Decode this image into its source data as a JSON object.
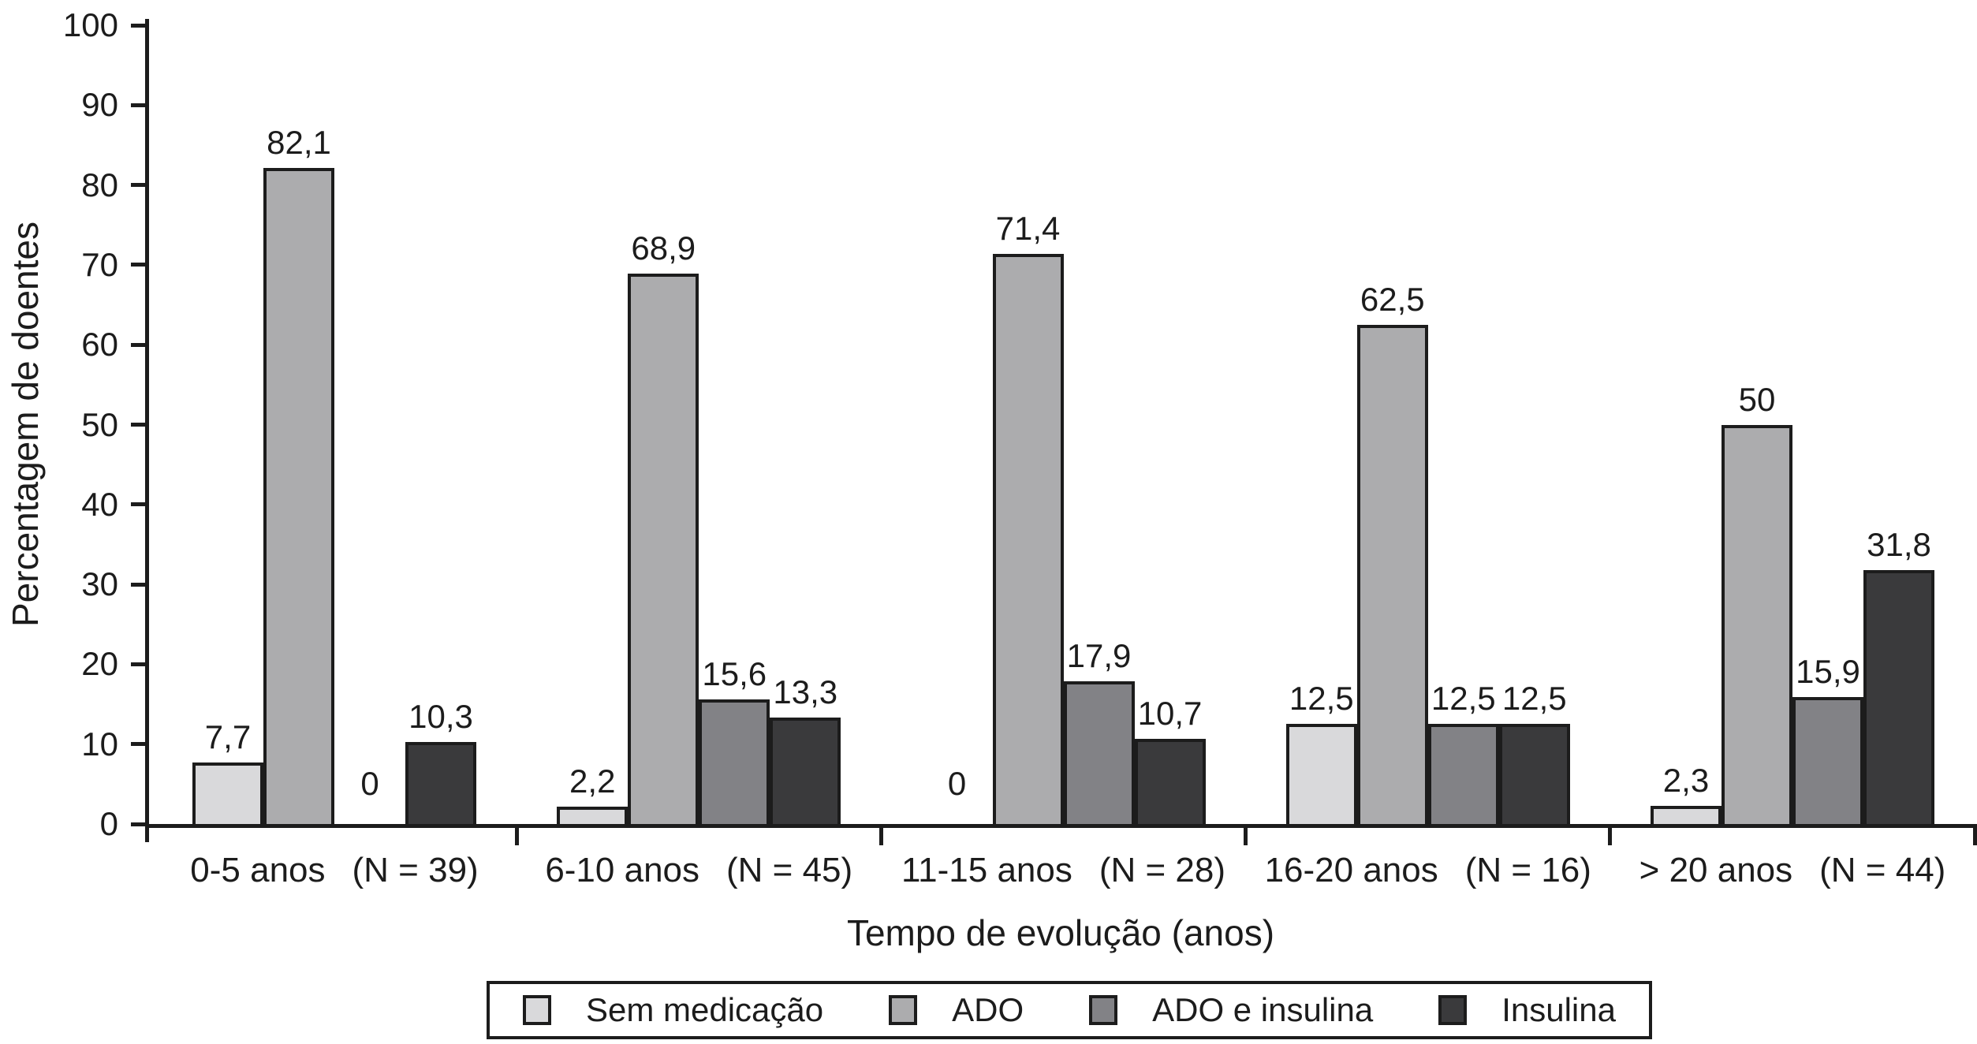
{
  "figure": {
    "background": "#ffffff",
    "axis_color": "#1c1c1c",
    "text_color": "#1c1c1c"
  },
  "chart_data": {
    "type": "bar",
    "title": "",
    "xlabel": "Tempo de evolução (anos)",
    "ylabel": "Percentagem de doentes",
    "ylim": [
      0,
      100
    ],
    "yticks": [
      0,
      10,
      20,
      30,
      40,
      50,
      60,
      70,
      80,
      90,
      100
    ],
    "grid": false,
    "legend_position": "bottom",
    "categories": [
      "0-5 anos",
      "6-10 anos",
      "11-15 anos",
      "16-20 anos",
      "> 20 anos"
    ],
    "category_counts": [
      "(N = 39)",
      "(N = 45)",
      "(N = 28)",
      "(N = 16)",
      "(N = 44)"
    ],
    "series": [
      {
        "name": "Sem medicação",
        "color": "#d9d9db",
        "values": [
          7.7,
          2.2,
          0,
          12.5,
          2.3
        ],
        "labels": [
          "7,7",
          "2,2",
          "0",
          "12,5",
          "2,3"
        ]
      },
      {
        "name": "ADO",
        "color": "#acacae",
        "values": [
          82.1,
          68.9,
          71.4,
          62.5,
          50
        ],
        "labels": [
          "82,1",
          "68,9",
          "71,4",
          "62,5",
          "50"
        ]
      },
      {
        "name": "ADO e insulina",
        "color": "#828286",
        "values": [
          0,
          15.6,
          17.9,
          12.5,
          15.9
        ],
        "labels": [
          "0",
          "15,6",
          "17,9",
          "12,5",
          "15,9"
        ]
      },
      {
        "name": "Insulina",
        "color": "#3a3a3c",
        "values": [
          10.3,
          13.3,
          10.7,
          12.5,
          31.8
        ],
        "labels": [
          "10,3",
          "13,3",
          "10,7",
          "12,5",
          "31,8"
        ]
      }
    ]
  }
}
